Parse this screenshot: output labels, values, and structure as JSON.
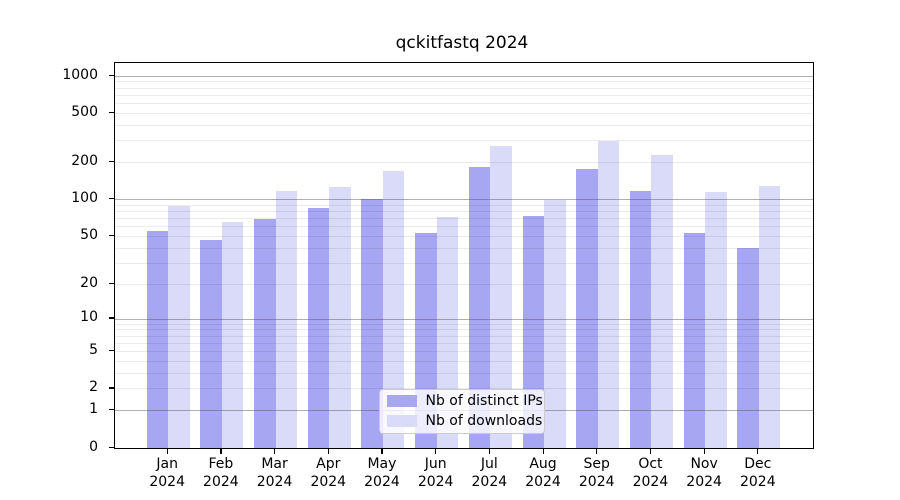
{
  "chart_data": {
    "type": "bar",
    "title": "qckitfastq 2024",
    "categories": [
      "Jan",
      "Feb",
      "Mar",
      "Apr",
      "May",
      "Jun",
      "Jul",
      "Aug",
      "Sep",
      "Oct",
      "Nov",
      "Dec"
    ],
    "year_label": "2024",
    "series": [
      {
        "name": "Nb of distinct IPs",
        "color": "#a6a6f2",
        "values": [
          55,
          46,
          69,
          85,
          100,
          53,
          183,
          73,
          175,
          116,
          53,
          40
        ]
      },
      {
        "name": "Nb of downloads",
        "color": "#dadaf9",
        "values": [
          88,
          65,
          117,
          126,
          170,
          72,
          270,
          98,
          295,
          230,
          114,
          129
        ]
      }
    ],
    "yticks": [
      0,
      1,
      2,
      5,
      10,
      20,
      50,
      100,
      200,
      500,
      1000
    ],
    "scale": "log1p",
    "ylim": [
      0,
      1280
    ],
    "grid": true,
    "legend_position": "lower center"
  }
}
